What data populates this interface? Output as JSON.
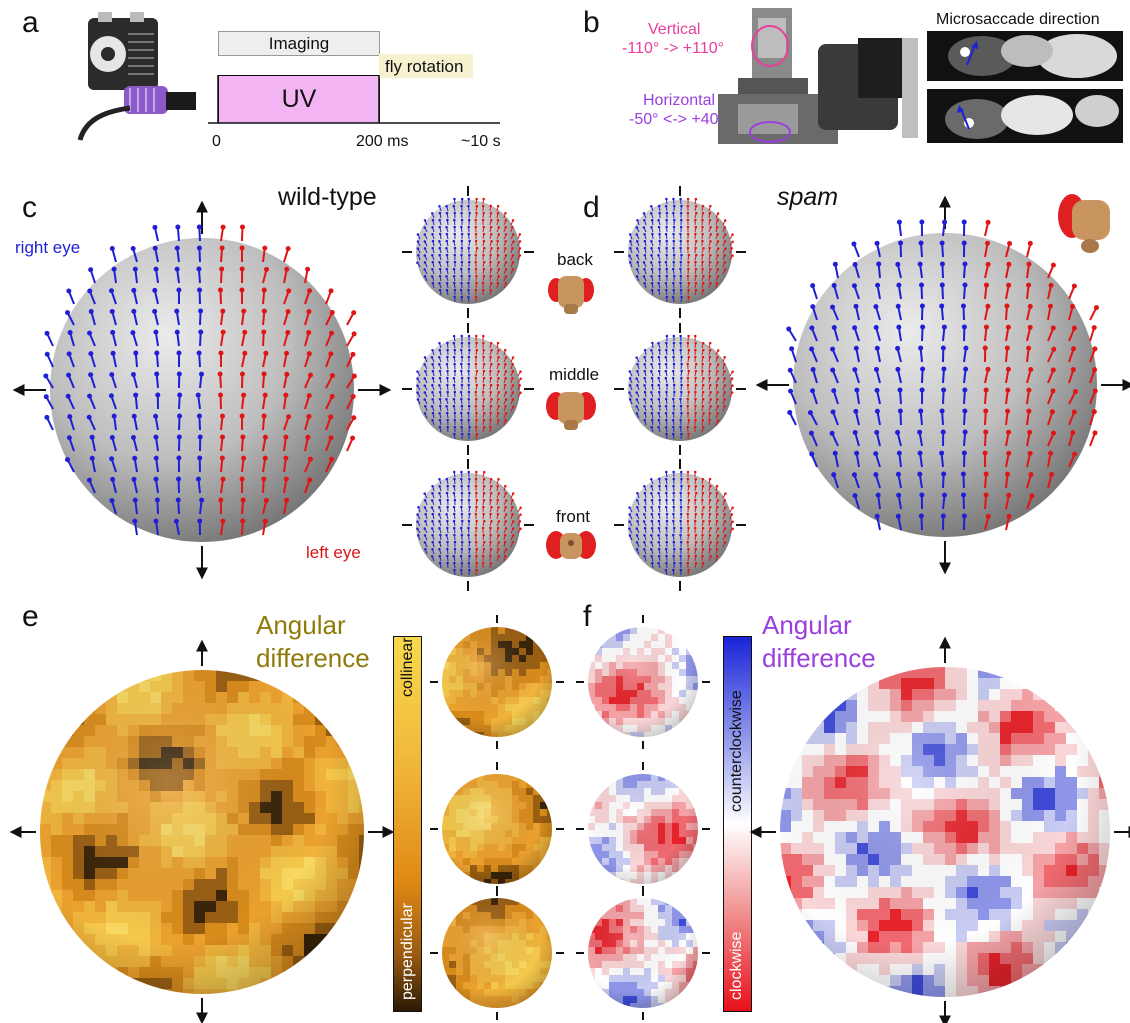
{
  "panel_letters": [
    "a",
    "b",
    "c",
    "d",
    "e",
    "f"
  ],
  "panel_a": {
    "imaging_label": "Imaging",
    "uv_label": "UV",
    "rotation_label": "fly rotation",
    "ticks": [
      "0",
      "200 ms",
      "~10 s"
    ]
  },
  "panel_b": {
    "vertical_label": "Vertical",
    "vertical_range": "-110° -> +110°",
    "horizontal_label": "Horizontal",
    "horizontal_range": "-50° <-> +40°",
    "micro_title": "Microsaccade direction"
  },
  "panel_c": {
    "title": "wild-type",
    "right_eye": "right eye",
    "left_eye": "left eye"
  },
  "panel_d": {
    "title": "spam",
    "views": [
      "back",
      "middle",
      "front"
    ]
  },
  "panel_e": {
    "title_line1": "Angular",
    "title_line2": "difference",
    "bar_top": "collinear",
    "bar_bottom": "perpendicular"
  },
  "panel_f": {
    "title_line1": "Angular",
    "title_line2": "difference",
    "bar_top": "counterclockwise",
    "bar_bottom": "clockwise"
  },
  "colors": {
    "right_eye": "#1f1fd6",
    "left_eye": "#e01515",
    "uv_fill": "#f2b4f2",
    "rotation_fill": "#f6f1cf",
    "vertical_text": "#e83e9c",
    "horizontal_text": "#9b3fe0",
    "angular_e": "#8f7b08",
    "angular_f": "#9b3fe0"
  }
}
